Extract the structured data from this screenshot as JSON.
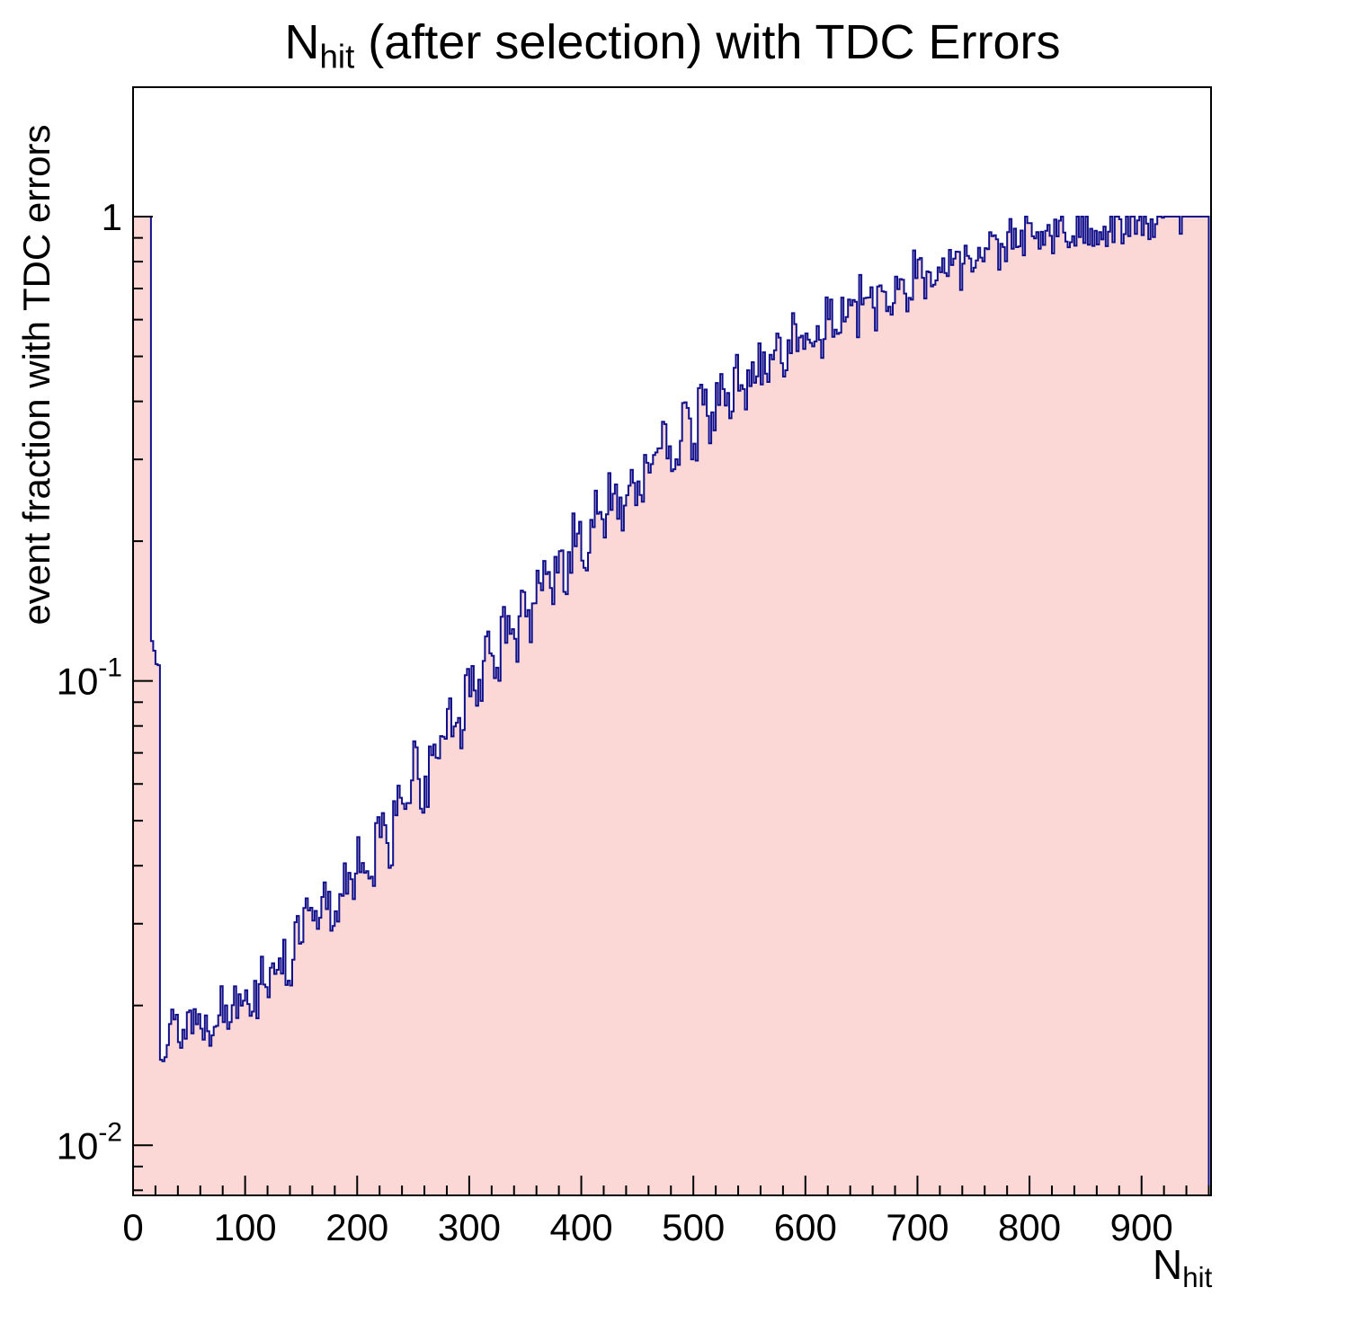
{
  "title": {
    "prefix": "N",
    "subscript": "hit",
    "suffix": " (after selection) with TDC Errors"
  },
  "axes": {
    "x": {
      "label_prefix": "N",
      "label_subscript": "hit",
      "min": 0,
      "max": 962,
      "major_tick_values": [
        0,
        100,
        200,
        300,
        400,
        500,
        600,
        700,
        800,
        900
      ],
      "major_tick_labels": [
        "0",
        "100",
        "200",
        "300",
        "400",
        "500",
        "600",
        "700",
        "800",
        "900"
      ],
      "minor_step": 20
    },
    "y": {
      "label": "event fraction with TDC errors",
      "scale": "log",
      "min": 0.0078,
      "max": 1.9,
      "major_ticks": [
        {
          "value": 1,
          "label": "1",
          "exp": ""
        },
        {
          "value": 0.1,
          "label": "10",
          "exp": "-1"
        },
        {
          "value": 0.01,
          "label": "10",
          "exp": "-2"
        }
      ]
    }
  },
  "chart_data": {
    "type": "bar",
    "subtype": "filled-step-histogram",
    "title": "N_hit (after selection) with TDC Errors",
    "xlabel": "N_hit",
    "ylabel": "event fraction with TDC errors",
    "xlim": [
      0,
      962
    ],
    "ylim": [
      0.0078,
      1.9
    ],
    "yscale": "log",
    "x_start": 0,
    "bin_width": 8,
    "values": [
      1,
      1,
      0.12,
      0.017,
      0.018,
      0.0175,
      0.019,
      0.0185,
      0.018,
      0.02,
      0.019,
      0.021,
      0.022,
      0.0205,
      0.024,
      0.022,
      0.026,
      0.024,
      0.028,
      0.031,
      0.029,
      0.034,
      0.031,
      0.038,
      0.035,
      0.042,
      0.039,
      0.048,
      0.044,
      0.055,
      0.05,
      0.068,
      0.058,
      0.075,
      0.068,
      0.085,
      0.078,
      0.1,
      0.09,
      0.12,
      0.105,
      0.13,
      0.12,
      0.15,
      0.135,
      0.17,
      0.155,
      0.185,
      0.17,
      0.21,
      0.185,
      0.23,
      0.21,
      0.26,
      0.235,
      0.28,
      0.26,
      0.31,
      0.285,
      0.33,
      0.31,
      0.36,
      0.33,
      0.39,
      0.36,
      0.42,
      0.39,
      0.46,
      0.42,
      0.49,
      0.46,
      0.52,
      0.49,
      0.56,
      0.52,
      0.58,
      0.55,
      0.61,
      0.57,
      0.64,
      0.6,
      0.67,
      0.63,
      0.7,
      0.66,
      0.73,
      0.69,
      0.76,
      0.72,
      0.79,
      0.75,
      0.82,
      0.78,
      0.85,
      0.81,
      0.87,
      0.84,
      0.89,
      0.86,
      0.91,
      0.88,
      0.92,
      0.9,
      0.94,
      0.91,
      0.95,
      0.92,
      0.96,
      0.93,
      0.97,
      0.94,
      0.98,
      0.95,
      0.99,
      0.96,
      1,
      0.98,
      1,
      1,
      1
    ],
    "jitter_log10": 0.05,
    "subdivisions": 4,
    "seed": 13,
    "fill_color": "#fbd8d6",
    "line_color": "#10108c",
    "frame_color": "#000000",
    "legend": "none",
    "grid": "off"
  }
}
